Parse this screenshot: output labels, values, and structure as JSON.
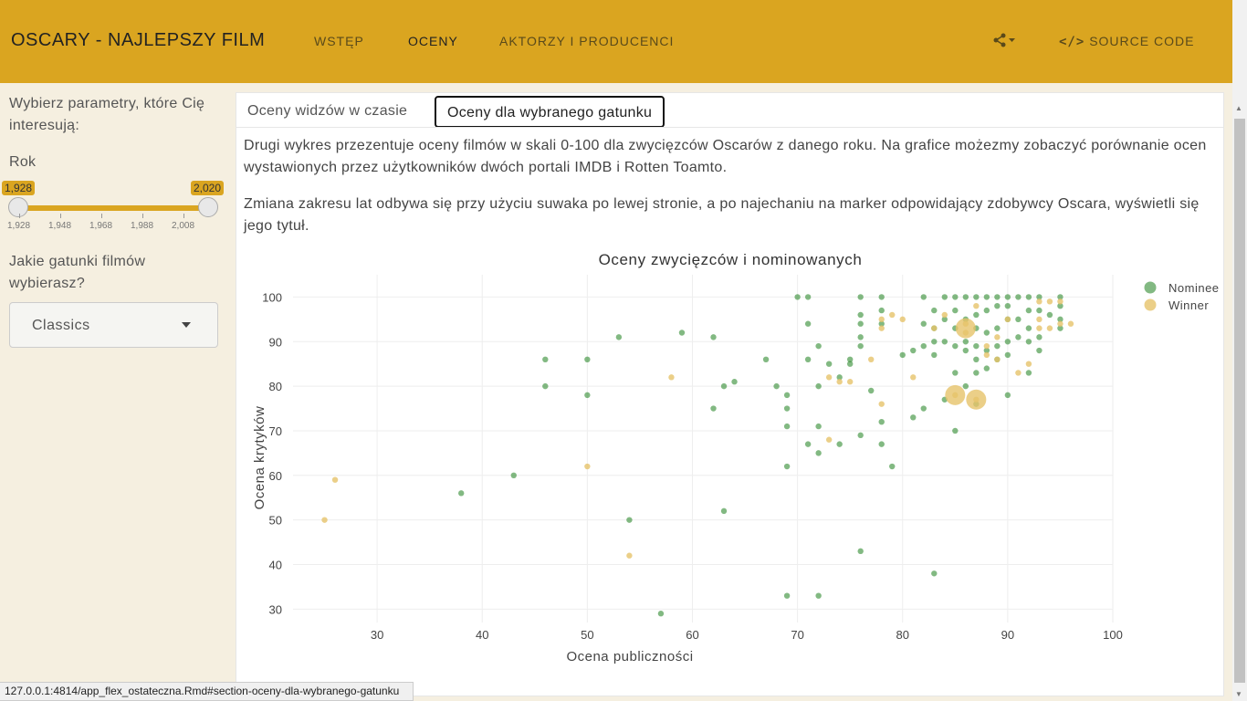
{
  "header": {
    "brand": "OSCARY - NAJLEPSZY FILM",
    "nav": [
      {
        "label": "WSTĘP"
      },
      {
        "label": "OCENY"
      },
      {
        "label": "AKTORZY I PRODUCENCI"
      }
    ],
    "share_icon": "share-icon",
    "source_label": "SOURCE CODE"
  },
  "sidebar": {
    "intro": "Wybierz parametry, które Cię interesują:",
    "year_label": "Rok",
    "slider_min": "1,928",
    "slider_max": "2,020",
    "ticks": [
      "1,928",
      "1,948",
      "1,968",
      "1,988",
      "2,008"
    ],
    "genre_label": "Jakie gatunki filmów wybierasz?",
    "genre_value": "Classics"
  },
  "tabs": [
    {
      "label": "Oceny widzów w czasie"
    },
    {
      "label": "Oceny dla wybranego gatunku"
    }
  ],
  "paragraphs": [
    "Drugi wykres przezentuje oceny filmów w skali 0-100 dla zwycięzców Oscarów z danego roku. Na grafice możezmy zobaczyć porównanie ocen wystawionych przez użytkowników dwóch portali IMDB i Rotten Toamto.",
    "Zmiana zakresu lat odbywa się przy użyciu suwaka po lewej stronie, a po najechaniu na marker odpowidający zdobywcy Oscara, wyświetli się jego tytuł."
  ],
  "status_url": "127.0.0.1:4814/app_flex_ostateczna.Rmd#section-oceny-dla-wybranego-gatunku",
  "colors": {
    "nominee": "#2e8b2e",
    "winner": "#e6c36a",
    "accent": "#daa520"
  },
  "chart_data": {
    "type": "scatter",
    "title": "Oceny zwycięzców i nominowanych",
    "xlabel": "Ocena publiczności",
    "ylabel": "Ocena krytyków",
    "xlim": [
      22,
      100
    ],
    "ylim": [
      27,
      105
    ],
    "xticks": [
      30,
      40,
      50,
      60,
      70,
      80,
      90,
      100
    ],
    "yticks": [
      30,
      40,
      50,
      60,
      70,
      80,
      90,
      100
    ],
    "legend": [
      "Nominee",
      "Winner"
    ],
    "series": [
      {
        "name": "Nominee",
        "points": [
          [
            38,
            56
          ],
          [
            43,
            60
          ],
          [
            46,
            86
          ],
          [
            46,
            80
          ],
          [
            50,
            86
          ],
          [
            50,
            78
          ],
          [
            53,
            91
          ],
          [
            54,
            50
          ],
          [
            57,
            29
          ],
          [
            59,
            92
          ],
          [
            62,
            91
          ],
          [
            62,
            75
          ],
          [
            63,
            80
          ],
          [
            63,
            52
          ],
          [
            64,
            81
          ],
          [
            67,
            86
          ],
          [
            68,
            80
          ],
          [
            69,
            78
          ],
          [
            69,
            75
          ],
          [
            69,
            71
          ],
          [
            69,
            62
          ],
          [
            69,
            33
          ],
          [
            70,
            100
          ],
          [
            71,
            100
          ],
          [
            71,
            94
          ],
          [
            71,
            86
          ],
          [
            71,
            67
          ],
          [
            72,
            89
          ],
          [
            72,
            80
          ],
          [
            72,
            71
          ],
          [
            72,
            65
          ],
          [
            72,
            33
          ],
          [
            73,
            85
          ],
          [
            74,
            82
          ],
          [
            74,
            67
          ],
          [
            75,
            86
          ],
          [
            75,
            85
          ],
          [
            76,
            100
          ],
          [
            76,
            96
          ],
          [
            76,
            94
          ],
          [
            76,
            91
          ],
          [
            76,
            89
          ],
          [
            76,
            69
          ],
          [
            76,
            43
          ],
          [
            77,
            79
          ],
          [
            78,
            100
          ],
          [
            78,
            97
          ],
          [
            78,
            94
          ],
          [
            78,
            72
          ],
          [
            78,
            67
          ],
          [
            79,
            62
          ],
          [
            80,
            87
          ],
          [
            81,
            88
          ],
          [
            81,
            73
          ],
          [
            82,
            100
          ],
          [
            82,
            94
          ],
          [
            82,
            89
          ],
          [
            82,
            75
          ],
          [
            83,
            97
          ],
          [
            83,
            93
          ],
          [
            83,
            90
          ],
          [
            83,
            87
          ],
          [
            83,
            38
          ],
          [
            84,
            100
          ],
          [
            84,
            95
          ],
          [
            84,
            90
          ],
          [
            84,
            77
          ],
          [
            85,
            100
          ],
          [
            85,
            97
          ],
          [
            85,
            93
          ],
          [
            85,
            89
          ],
          [
            85,
            83
          ],
          [
            85,
            70
          ],
          [
            86,
            100
          ],
          [
            86,
            95
          ],
          [
            86,
            90
          ],
          [
            86,
            88
          ],
          [
            86,
            80
          ],
          [
            87,
            100
          ],
          [
            87,
            96
          ],
          [
            87,
            93
          ],
          [
            87,
            89
          ],
          [
            87,
            86
          ],
          [
            87,
            83
          ],
          [
            87,
            76
          ],
          [
            88,
            100
          ],
          [
            88,
            97
          ],
          [
            88,
            92
          ],
          [
            88,
            88
          ],
          [
            88,
            84
          ],
          [
            89,
            100
          ],
          [
            89,
            98
          ],
          [
            89,
            93
          ],
          [
            89,
            89
          ],
          [
            89,
            86
          ],
          [
            90,
            100
          ],
          [
            90,
            98
          ],
          [
            90,
            95
          ],
          [
            90,
            90
          ],
          [
            90,
            87
          ],
          [
            90,
            78
          ],
          [
            91,
            100
          ],
          [
            91,
            95
          ],
          [
            91,
            91
          ],
          [
            92,
            100
          ],
          [
            92,
            97
          ],
          [
            92,
            93
          ],
          [
            92,
            90
          ],
          [
            92,
            83
          ],
          [
            93,
            100
          ],
          [
            93,
            97
          ],
          [
            93,
            91
          ],
          [
            93,
            88
          ],
          [
            94,
            96
          ],
          [
            95,
            100
          ],
          [
            95,
            98
          ],
          [
            95,
            95
          ],
          [
            95,
            93
          ]
        ]
      },
      {
        "name": "Winner",
        "points": [
          [
            25,
            50
          ],
          [
            26,
            59
          ],
          [
            50,
            62
          ],
          [
            54,
            42
          ],
          [
            58,
            82
          ],
          [
            73,
            82
          ],
          [
            73,
            68
          ],
          [
            74,
            81
          ],
          [
            75,
            81
          ],
          [
            77,
            86
          ],
          [
            78,
            95
          ],
          [
            78,
            93
          ],
          [
            78,
            76
          ],
          [
            79,
            96
          ],
          [
            80,
            95
          ],
          [
            81,
            82
          ],
          [
            83,
            93
          ],
          [
            84,
            96
          ],
          [
            85,
            78
          ],
          [
            86,
            94
          ],
          [
            86,
            92
          ],
          [
            87,
            98
          ],
          [
            87,
            77
          ],
          [
            88,
            89
          ],
          [
            88,
            87
          ],
          [
            89,
            91
          ],
          [
            89,
            86
          ],
          [
            90,
            95
          ],
          [
            91,
            83
          ],
          [
            92,
            85
          ],
          [
            93,
            99
          ],
          [
            93,
            95
          ],
          [
            93,
            93
          ],
          [
            94,
            99
          ],
          [
            94,
            93
          ],
          [
            95,
            99
          ],
          [
            95,
            94
          ],
          [
            96,
            94
          ]
        ],
        "large_points": [
          [
            85,
            78
          ],
          [
            86,
            93
          ],
          [
            87,
            77
          ]
        ]
      }
    ]
  }
}
